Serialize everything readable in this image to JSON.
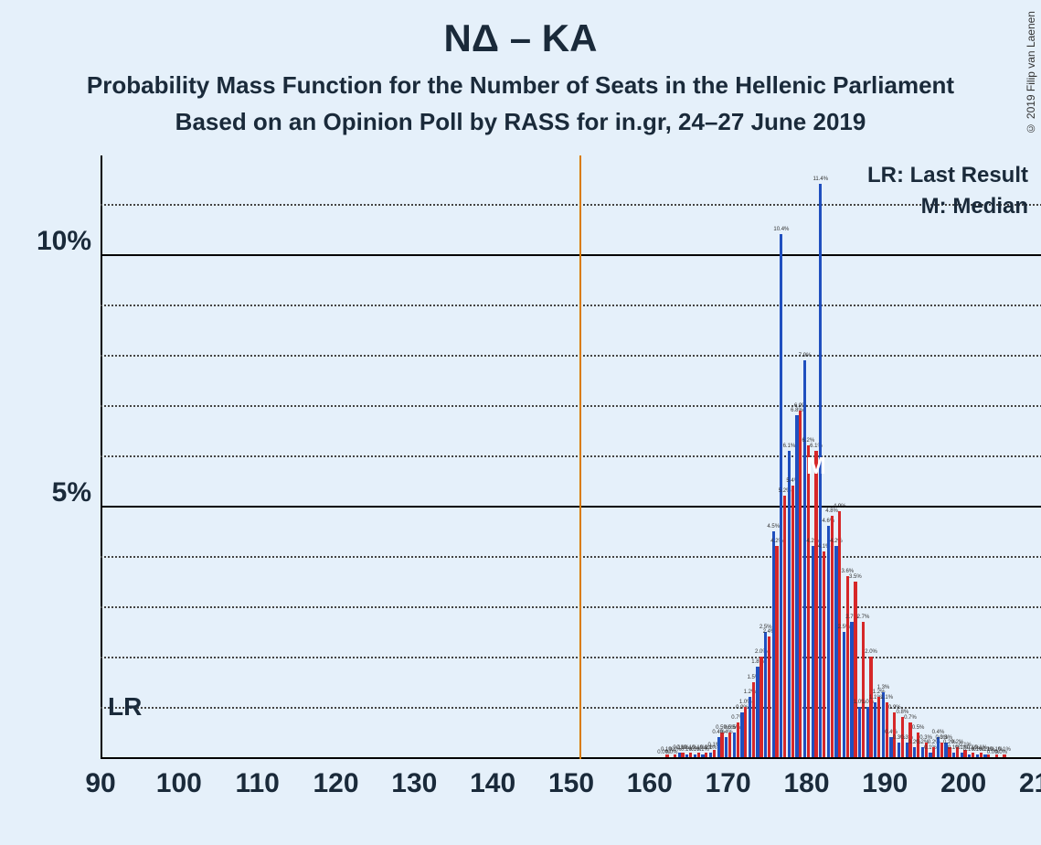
{
  "title": "ΝΔ – ΚΑ",
  "subtitle1": "Probability Mass Function for the Number of Seats in the Hellenic Parliament",
  "subtitle2": "Based on an Opinion Poll by RASS for in.gr, 24–27 June 2019",
  "copyright": "© 2019 Filip van Laenen",
  "legend": {
    "lr": "LR: Last Result",
    "m": "M: Median"
  },
  "lr_label": "LR",
  "m_label": "M",
  "chart": {
    "type": "bar",
    "background_color": "#e5f0fa",
    "x": {
      "min": 90,
      "max": 210,
      "tick_step": 10,
      "label_fontsize": 30
    },
    "y": {
      "min": 0,
      "max": 12,
      "major_step": 5,
      "minor_step": 1,
      "label_format_pct": true,
      "major_labels": [
        5,
        10
      ]
    },
    "major_grid_color": "#000000",
    "minor_grid_color": "#444444",
    "lr_line": {
      "x": 151,
      "color": "#d97b00"
    },
    "median_x": 181,
    "series": {
      "blue": {
        "color": "#1f4fbf",
        "offset": -0.22
      },
      "red": {
        "color": "#d62728",
        "offset": 0.22
      }
    },
    "bar_width_seats": 0.38,
    "bars": [
      {
        "x": 162,
        "blue": 0.0,
        "red": 0.05
      },
      {
        "x": 163,
        "blue": 0.0,
        "red": 0.05
      },
      {
        "x": 164,
        "blue": 0.1,
        "red": 0.1
      },
      {
        "x": 165,
        "blue": 0.05,
        "red": 0.1
      },
      {
        "x": 166,
        "blue": 0.05,
        "red": 0.1
      },
      {
        "x": 167,
        "blue": 0.05,
        "red": 0.1
      },
      {
        "x": 168,
        "blue": 0.1,
        "red": 0.15
      },
      {
        "x": 169,
        "blue": 0.4,
        "red": 0.5
      },
      {
        "x": 170,
        "blue": 0.4,
        "red": 0.5
      },
      {
        "x": 171,
        "blue": 0.5,
        "red": 0.7
      },
      {
        "x": 172,
        "blue": 0.9,
        "red": 1.0
      },
      {
        "x": 173,
        "blue": 1.2,
        "red": 1.5
      },
      {
        "x": 174,
        "blue": 1.8,
        "red": 2.0
      },
      {
        "x": 175,
        "blue": 2.5,
        "red": 2.4
      },
      {
        "x": 176,
        "blue": 4.5,
        "red": 4.2
      },
      {
        "x": 177,
        "blue": 10.4,
        "red": 5.2
      },
      {
        "x": 178,
        "blue": 6.1,
        "red": 5.4
      },
      {
        "x": 179,
        "blue": 6.8,
        "red": 6.9
      },
      {
        "x": 180,
        "blue": 7.9,
        "red": 6.2
      },
      {
        "x": 181,
        "blue": 4.2,
        "red": 6.1
      },
      {
        "x": 182,
        "blue": 11.4,
        "red": 4.1
      },
      {
        "x": 183,
        "blue": 4.6,
        "red": 4.8
      },
      {
        "x": 184,
        "blue": 4.2,
        "red": 4.9
      },
      {
        "x": 185,
        "blue": 2.5,
        "red": 3.6
      },
      {
        "x": 186,
        "blue": 2.7,
        "red": 3.5
      },
      {
        "x": 187,
        "blue": 1.0,
        "red": 2.7
      },
      {
        "x": 188,
        "blue": 1.0,
        "red": 2.0
      },
      {
        "x": 189,
        "blue": 1.1,
        "red": 1.2
      },
      {
        "x": 190,
        "blue": 1.3,
        "red": 1.1
      },
      {
        "x": 191,
        "blue": 0.4,
        "red": 0.9
      },
      {
        "x": 192,
        "blue": 0.3,
        "red": 0.8
      },
      {
        "x": 193,
        "blue": 0.3,
        "red": 0.7
      },
      {
        "x": 194,
        "blue": 0.2,
        "red": 0.5
      },
      {
        "x": 195,
        "blue": 0.2,
        "red": 0.3
      },
      {
        "x": 196,
        "blue": 0.1,
        "red": 0.2
      },
      {
        "x": 197,
        "blue": 0.4,
        "red": 0.3
      },
      {
        "x": 198,
        "blue": 0.3,
        "red": 0.2
      },
      {
        "x": 199,
        "blue": 0.1,
        "red": 0.2
      },
      {
        "x": 200,
        "blue": 0.1,
        "red": 0.15
      },
      {
        "x": 201,
        "blue": 0.05,
        "red": 0.1
      },
      {
        "x": 202,
        "blue": 0.05,
        "red": 0.1
      },
      {
        "x": 203,
        "blue": 0.05,
        "red": 0.05
      },
      {
        "x": 204,
        "blue": 0.0,
        "red": 0.05
      },
      {
        "x": 205,
        "blue": 0.0,
        "red": 0.05
      }
    ]
  }
}
